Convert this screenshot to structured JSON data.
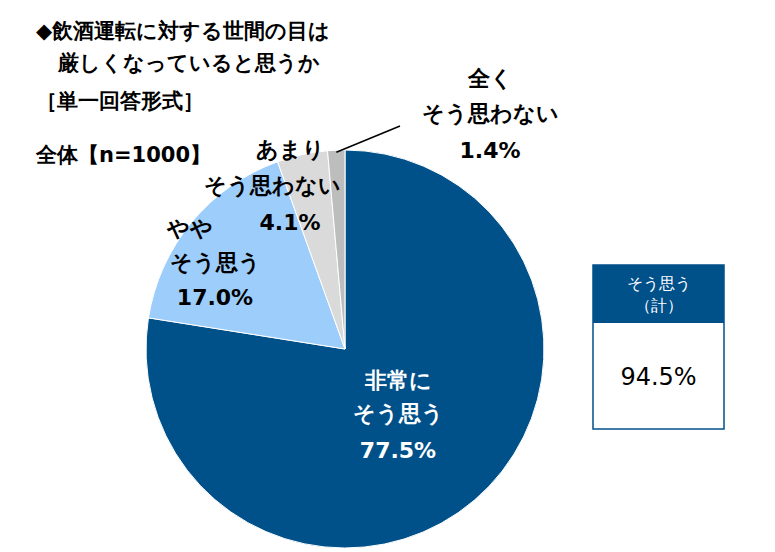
{
  "chart_data": {
    "type": "pie",
    "title": "◆飲酒運転に対する世間の目は\n厳しくなっていると思うか",
    "subtitle": "［単一回答形式］",
    "annotations": [
      "全体【n=1000】"
    ],
    "categories": [
      "非常に\nそう思う",
      "やや\nそう思う",
      "あまり\nそう思わない",
      "全く\nそう思わない"
    ],
    "values": [
      77.5,
      17.0,
      4.1,
      1.4
    ],
    "value_labels": [
      "77.5%",
      "17.0%",
      "4.1%",
      "1.4%"
    ],
    "colors": [
      "#00508A",
      "#9DCDFB",
      "#DADADA",
      "#BDBDBD"
    ],
    "data_labels": true,
    "summary": {
      "label": "そう思う\n（計）",
      "value": 94.5,
      "value_label": "94.5%"
    }
  }
}
